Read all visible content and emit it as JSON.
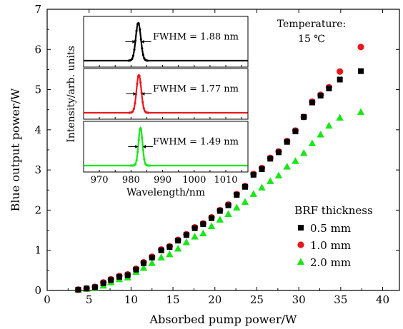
{
  "chart_data": [
    {
      "id": "main",
      "type": "scatter",
      "xlabel": "Absorbed pump power/W",
      "ylabel": "Blue output power/W",
      "xlim": [
        0,
        42
      ],
      "ylim": [
        0,
        7
      ],
      "xticks": [
        0,
        5,
        10,
        15,
        20,
        25,
        30,
        35,
        40
      ],
      "yticks": [
        0,
        1,
        2,
        3,
        4,
        5,
        6,
        7
      ],
      "grid": false,
      "legend": {
        "title": "BRF thickness",
        "placement": "bottom-right"
      },
      "annotation": [
        "Temperature:",
        "15 ℃"
      ],
      "series": [
        {
          "name": "0.5 mm",
          "marker": "square",
          "color": "#000000",
          "x": [
            3.7,
            4.7,
            5.7,
            6.7,
            7.6,
            8.6,
            9.6,
            10.6,
            11.5,
            12.5,
            13.6,
            14.6,
            15.6,
            16.6,
            17.6,
            18.6,
            19.6,
            20.6,
            21.6,
            22.6,
            23.6,
            24.6,
            25.6,
            26.6,
            27.6,
            28.6,
            29.6,
            30.6,
            31.6,
            32.6,
            33.6,
            34.9,
            37.4
          ],
          "y": [
            0.02,
            0.05,
            0.08,
            0.18,
            0.26,
            0.34,
            0.38,
            0.52,
            0.68,
            0.82,
            1.0,
            1.08,
            1.24,
            1.38,
            1.55,
            1.65,
            1.8,
            1.98,
            2.12,
            2.38,
            2.58,
            2.88,
            3.02,
            3.28,
            3.44,
            3.7,
            3.96,
            4.32,
            4.68,
            4.85,
            5.03,
            5.25,
            5.46
          ]
        },
        {
          "name": "1.0 mm",
          "marker": "circle",
          "color": "#e8191c",
          "x": [
            3.7,
            4.7,
            5.7,
            6.7,
            7.6,
            8.6,
            9.6,
            10.6,
            11.5,
            12.5,
            13.6,
            14.6,
            15.6,
            16.6,
            17.6,
            18.6,
            19.6,
            20.6,
            21.6,
            22.6,
            23.6,
            24.6,
            25.6,
            26.6,
            27.6,
            28.6,
            29.6,
            30.6,
            31.6,
            32.6,
            33.6,
            34.9,
            37.4
          ],
          "y": [
            0.02,
            0.05,
            0.09,
            0.2,
            0.28,
            0.36,
            0.4,
            0.54,
            0.7,
            0.84,
            1.02,
            1.1,
            1.26,
            1.4,
            1.57,
            1.67,
            1.82,
            2.0,
            2.14,
            2.4,
            2.6,
            2.9,
            3.05,
            3.3,
            3.46,
            3.72,
            3.98,
            4.32,
            4.7,
            4.87,
            5.06,
            5.45,
            6.06
          ]
        },
        {
          "name": "2.0 mm",
          "marker": "triangle",
          "color": "#19e619",
          "x": [
            3.7,
            4.7,
            5.7,
            6.7,
            7.6,
            8.6,
            9.6,
            10.6,
            11.5,
            12.5,
            13.6,
            14.6,
            15.6,
            16.6,
            17.6,
            18.6,
            19.6,
            20.6,
            21.6,
            22.6,
            23.6,
            24.6,
            25.6,
            26.6,
            27.6,
            28.6,
            29.6,
            30.6,
            31.6,
            32.6,
            33.6,
            34.9,
            37.4
          ],
          "y": [
            0.02,
            0.04,
            0.06,
            0.12,
            0.2,
            0.28,
            0.32,
            0.46,
            0.56,
            0.68,
            0.82,
            0.9,
            1.04,
            1.2,
            1.34,
            1.42,
            1.6,
            1.76,
            1.9,
            2.06,
            2.2,
            2.4,
            2.56,
            2.72,
            2.86,
            3.08,
            3.22,
            3.42,
            3.66,
            3.88,
            4.1,
            4.3,
            4.44
          ]
        }
      ]
    },
    {
      "id": "inset",
      "type": "line",
      "xlabel": "Wavelength/nm",
      "ylabel": "Intensity/arb. units",
      "xlim": [
        965,
        1017
      ],
      "xticks": [
        970,
        975,
        980,
        985,
        990,
        995,
        1000,
        1005,
        1010,
        1015
      ],
      "xticklabels": [
        "970",
        "",
        "980",
        "",
        "990",
        "",
        "1000",
        "",
        "1010",
        ""
      ],
      "panels": [
        {
          "name": "0.5 mm",
          "color": "#000000",
          "center": 982.3,
          "fwhm": 1.88,
          "label": "FWHM = 1.88 nm"
        },
        {
          "name": "1.0 mm",
          "color": "#e8191c",
          "center": 982.5,
          "fwhm": 1.77,
          "label": "FWHM = 1.77 nm"
        },
        {
          "name": "2.0 mm",
          "color": "#19e619",
          "center": 983.0,
          "fwhm": 1.49,
          "label": "FWHM = 1.49 nm"
        }
      ]
    }
  ]
}
